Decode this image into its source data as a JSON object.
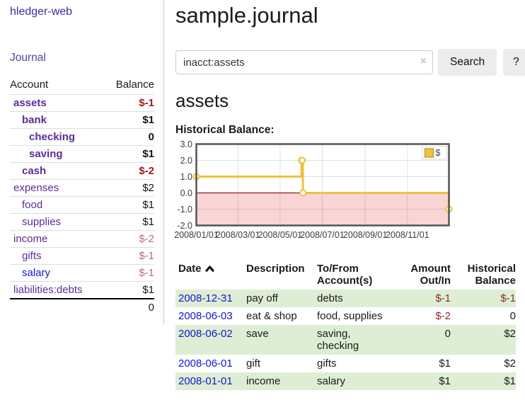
{
  "app": {
    "brand": "hledger-web"
  },
  "colors": {
    "brand-purple": "#3e2ba0",
    "journal-purple": "#5a3fa6",
    "acct-purple": "#5c2d91",
    "link-blue": "#1515ce",
    "neg-strong": "#9e1a1a",
    "neg-soft": "#b3706b",
    "table-neg": "#8c2a24",
    "row-green": "#ddeed4",
    "series-gold": "#EDC240",
    "series-gold-border": "#c6a02f",
    "zero-line": "#8b1a1a",
    "chart-border": "#545454"
  },
  "sidebar": {
    "journal_link": "Journal",
    "accounts": {
      "header_account": "Account",
      "header_balance": "Balance",
      "rows": [
        {
          "account": "assets",
          "balance": "$-1",
          "depth": 1,
          "bold": true
        },
        {
          "account": "bank",
          "balance": "$1",
          "depth": 2,
          "bold": true
        },
        {
          "account": "checking",
          "balance": "0",
          "depth": 3,
          "bold": true
        },
        {
          "account": "saving",
          "balance": "$1",
          "depth": 3,
          "bold": true
        },
        {
          "account": "cash",
          "balance": "$-2",
          "depth": 2,
          "bold": true
        },
        {
          "account": "expenses",
          "balance": "$2",
          "depth": 1,
          "bold": false
        },
        {
          "account": "food",
          "balance": "$1",
          "depth": 2,
          "bold": false
        },
        {
          "account": "supplies",
          "balance": "$1",
          "depth": 2,
          "bold": false
        },
        {
          "account": "income",
          "balance": "$-2",
          "depth": 1,
          "bold": false
        },
        {
          "account": "gifts",
          "balance": "$-1",
          "depth": 2,
          "bold": false
        },
        {
          "account": "salary",
          "balance": "$-1",
          "depth": 2,
          "bold": false,
          "unvisited": true
        },
        {
          "account": "liabilities:debts",
          "balance": "$1",
          "depth": 1,
          "bold": false
        }
      ],
      "total": "0"
    }
  },
  "main": {
    "title": "sample.journal",
    "search": {
      "query": "inacct:assets",
      "clear_icon": "×",
      "button": "Search",
      "help_button": "?"
    },
    "account_heading": "assets",
    "section_label": "Historical Balance:"
  },
  "chart_data": {
    "type": "line",
    "style": "step",
    "title": "Historical Balance",
    "series": [
      {
        "name": "$",
        "points": [
          {
            "date": "2008/01/01",
            "value": 1.0
          },
          {
            "date": "2008/06/01",
            "value": 2.0
          },
          {
            "date": "2008/06/02",
            "value": 2.0
          },
          {
            "date": "2008/06/03",
            "value": 0.0
          },
          {
            "date": "2008/12/31",
            "value": -1.0
          }
        ]
      }
    ],
    "xlim": [
      "2008/01/01",
      "2008/12/31"
    ],
    "ylim": [
      -2.0,
      3.0
    ],
    "ytick_labels": [
      "3.0",
      "2.0",
      "1.0",
      "0.0",
      "-1.0",
      "-2.0"
    ],
    "xtick_labels": [
      "2008/01/01",
      "2008/03/01",
      "2008/05/01",
      "2008/07/01",
      "2008/09/01",
      "2008/11/01"
    ],
    "legend_position": "top-right",
    "grid": true,
    "negative_region": true
  },
  "register": {
    "columns": [
      {
        "label": "Date",
        "sorted": "asc"
      },
      {
        "label": "Description"
      },
      {
        "label": "To/From Account(s)"
      },
      {
        "label": "Amount Out/In",
        "align": "right"
      },
      {
        "label": "Historical Balance",
        "align": "right"
      }
    ],
    "rows": [
      {
        "date": "2008-12-31",
        "description": "pay off",
        "accounts": "debts",
        "amount": "$-1",
        "balance": "$-1"
      },
      {
        "date": "2008-06-03",
        "description": "eat & shop",
        "accounts": "food, supplies",
        "amount": "$-2",
        "balance": "0"
      },
      {
        "date": "2008-06-02",
        "description": "save",
        "accounts": "saving, checking",
        "amount": "0",
        "balance": "$2"
      },
      {
        "date": "2008-06-01",
        "description": "gift",
        "accounts": "gifts",
        "amount": "$1",
        "balance": "$2"
      },
      {
        "date": "2008-01-01",
        "description": "income",
        "accounts": "salary",
        "amount": "$1",
        "balance": "$1"
      }
    ]
  }
}
